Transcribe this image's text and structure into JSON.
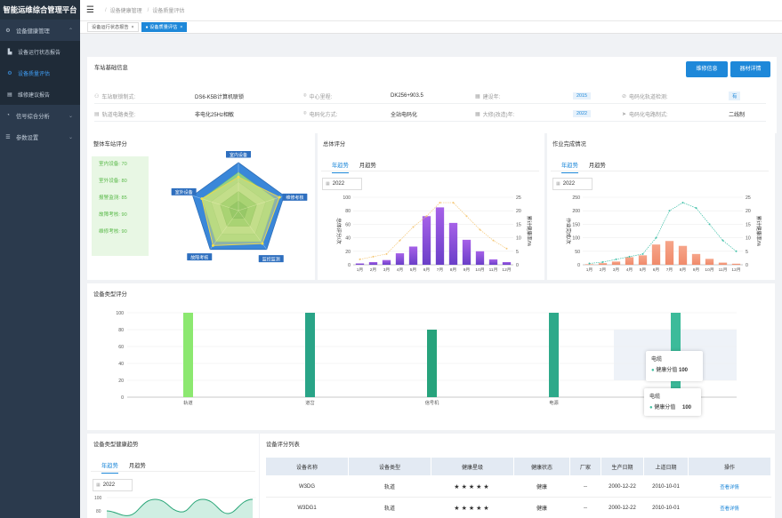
{
  "app": {
    "title": "智能运维综合管理平台"
  },
  "sidebar": {
    "items": [
      {
        "icon": "gear-icon",
        "glyph": "⚙",
        "label": "设备健康管理",
        "expanded": true
      },
      {
        "icon": "chart-bar-icon",
        "glyph": "▙",
        "label": "设备运行状态报告",
        "sub": true
      },
      {
        "icon": "tool-icon",
        "glyph": "⚙",
        "label": "设备质量评估",
        "sub": true,
        "active": true
      },
      {
        "icon": "file-icon",
        "glyph": "▤",
        "label": "维修建议报告",
        "sub": true
      },
      {
        "icon": "signal-icon",
        "glyph": "◔",
        "label": "信号综合分析",
        "expanded": false
      },
      {
        "icon": "sliders-icon",
        "glyph": "☰",
        "label": "参数设置",
        "expanded": false
      }
    ]
  },
  "header": {
    "breadcrumb": [
      "设备健康管理",
      "设备质量评估"
    ]
  },
  "tabs": [
    {
      "label": "设备运行状态报告",
      "active": false
    },
    {
      "label": "设备质量评估",
      "active": true
    }
  ],
  "station": {
    "title": "车站基础信息",
    "btn_repair": "维修信息",
    "btn_material": "器材详情",
    "rows": [
      [
        {
          "label": "车站联锁制式:",
          "value": "DS6-K5B计算机联锁"
        },
        {
          "label": "中心里程:",
          "value": "DK256+903.5"
        },
        {
          "label": "建设年:",
          "value": "2015",
          "badge": true
        },
        {
          "label": "电码化轨道检测:",
          "value": "有",
          "badge": true
        }
      ],
      [
        {
          "label": "轨道电路类型:",
          "value": "非电化25Hz相敏"
        },
        {
          "label": "电码化方式:",
          "value": "全站电码化"
        },
        {
          "label": "大修(改造)年:",
          "value": "2022",
          "badge": true
        },
        {
          "label": "电码化电路制式:",
          "value": "二线制"
        }
      ]
    ]
  },
  "overall": {
    "title": "整体车站评分",
    "scores": [
      "室内设备: 70",
      "室外设备: 80",
      "报警监测: 85",
      "故障考核: 90",
      "维修考核: 90"
    ],
    "radar_labels": [
      "室内设备",
      "维修考核",
      "监控监测",
      "故障考核",
      "室外设备"
    ]
  },
  "total": {
    "title": "总体评分",
    "tabs": [
      "年趋势",
      "月趋势"
    ],
    "year": "2022",
    "ylabel_left": "总体评分/次",
    "ylabel_right": "累计健康率/%"
  },
  "work": {
    "title": "作业完成情况",
    "tabs": [
      "年趋势",
      "月趋势"
    ],
    "year": "2022",
    "ylabel_left": "作业完成/次",
    "ylabel_right": "累计健康率/%"
  },
  "types": {
    "title": "设备类型评分",
    "tooltip1": {
      "title": "电缆",
      "label": "健康分值",
      "value": "100"
    },
    "tooltip2": {
      "title": "电缆",
      "label": "健康分值",
      "value": "100"
    }
  },
  "health": {
    "title": "设备类型健康趋势",
    "tabs": [
      "年趋势",
      "月趋势"
    ],
    "year": "2022",
    "yticks": [
      "100",
      "80"
    ]
  },
  "list": {
    "title": "设备评分列表",
    "headers": [
      "设备名称",
      "设备类型",
      "健康星级",
      "健康状态",
      "厂家",
      "生产日期",
      "上道日期",
      "操作"
    ],
    "rows": [
      {
        "name": "W3DG",
        "type": "轨道",
        "stars": "★★★★★",
        "status": "健康",
        "maker": "--",
        "prod": "2000-12-22",
        "online": "2010-10-01",
        "op": "查看详情"
      },
      {
        "name": "W3DG1",
        "type": "轨道",
        "stars": "★★★★★",
        "status": "健康",
        "maker": "--",
        "prod": "2000-12-22",
        "online": "2010-10-01",
        "op": "查看详情"
      }
    ]
  },
  "chart_data": [
    {
      "type": "bar",
      "id": "total",
      "categories": [
        "1月",
        "2月",
        "3月",
        "4月",
        "5月",
        "6月",
        "7月",
        "8月",
        "9月",
        "10月",
        "11月",
        "12月"
      ],
      "values": [
        2,
        4,
        7,
        17,
        27,
        72,
        85,
        62,
        37,
        20,
        8,
        4
      ],
      "line_values": [
        2,
        3,
        4,
        9,
        14,
        18,
        23,
        23,
        18,
        13,
        9,
        6
      ],
      "ylim": [
        0,
        100
      ],
      "yticks": [
        0,
        20,
        40,
        60,
        80,
        100
      ],
      "y2lim": [
        0,
        25
      ],
      "y2ticks": [
        0,
        5,
        10,
        15,
        20,
        25
      ]
    },
    {
      "type": "bar",
      "id": "work",
      "categories": [
        "1月",
        "2月",
        "3月",
        "4月",
        "5月",
        "6月",
        "7月",
        "8月",
        "9月",
        "10月",
        "11月",
        "12月"
      ],
      "values": [
        2,
        6,
        12,
        28,
        35,
        75,
        88,
        70,
        40,
        22,
        8,
        4
      ],
      "line_values": [
        0.5,
        1,
        2,
        3,
        4,
        10,
        20,
        23,
        21,
        15,
        9,
        5
      ],
      "ylim": [
        0,
        250
      ],
      "yticks": [
        0,
        50,
        100,
        150,
        200,
        250
      ],
      "y2lim": [
        0,
        25
      ],
      "y2ticks": [
        0,
        5,
        10,
        15,
        20,
        25
      ]
    },
    {
      "type": "bar",
      "id": "types",
      "categories": [
        "轨道",
        "道岔",
        "信号机",
        "电源",
        "电缆"
      ],
      "values": [
        100,
        100,
        80,
        100,
        100
      ],
      "colors": [
        "#8ce870",
        "#29a487",
        "#27a37c",
        "#2da98a",
        "#3cbb9a"
      ],
      "ylim": [
        0,
        100
      ],
      "yticks": [
        0,
        20,
        40,
        60,
        80,
        100
      ]
    },
    {
      "type": "radar",
      "id": "overall",
      "categories": [
        "室内设备",
        "维修考核",
        "监控监测",
        "故障考核",
        "室外设备"
      ],
      "values": [
        70,
        90,
        85,
        90,
        80
      ],
      "max": 100
    }
  ]
}
